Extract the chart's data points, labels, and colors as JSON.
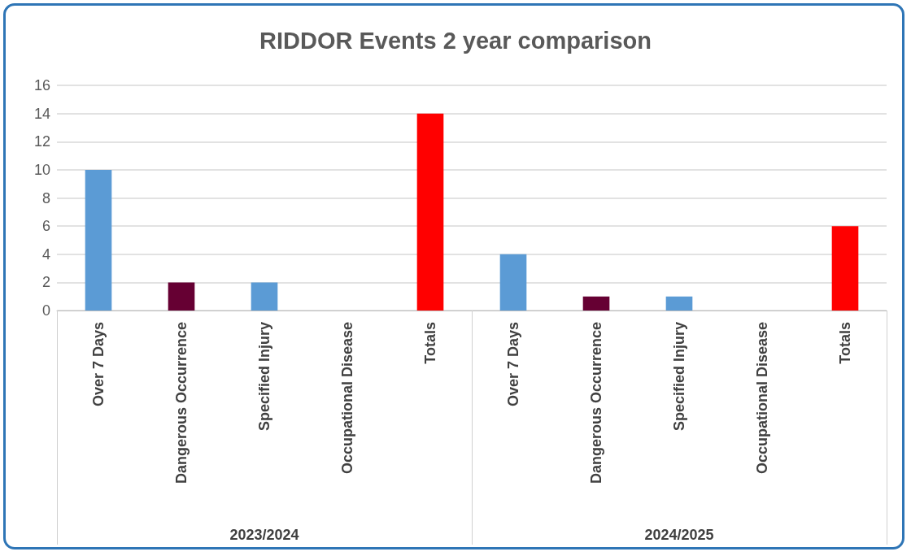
{
  "chart_data": {
    "type": "bar",
    "title": "RIDDOR Events 2 year comparison",
    "categories": [
      "Over 7 Days",
      "Dangerous Occurrence",
      "Specified Injury",
      "Occupational Disease",
      "Totals",
      "Over 7 Days",
      "Dangerous Occurrence",
      "Specified Injury",
      "Occupational Disease",
      "Totals"
    ],
    "values": [
      10,
      2,
      2,
      0,
      14,
      4,
      1,
      1,
      0,
      6
    ],
    "colors": [
      "#5b9bd5",
      "#660033",
      "#5b9bd5",
      "#5b9bd5",
      "#ff0000",
      "#5b9bd5",
      "#660033",
      "#5b9bd5",
      "#5b9bd5",
      "#ff0000"
    ],
    "ylim": [
      0,
      16
    ],
    "yticks": [
      0,
      2,
      4,
      6,
      8,
      10,
      12,
      14,
      16
    ],
    "grid": "y",
    "annotations": [
      "2023/2024",
      "2024/2025"
    ]
  }
}
